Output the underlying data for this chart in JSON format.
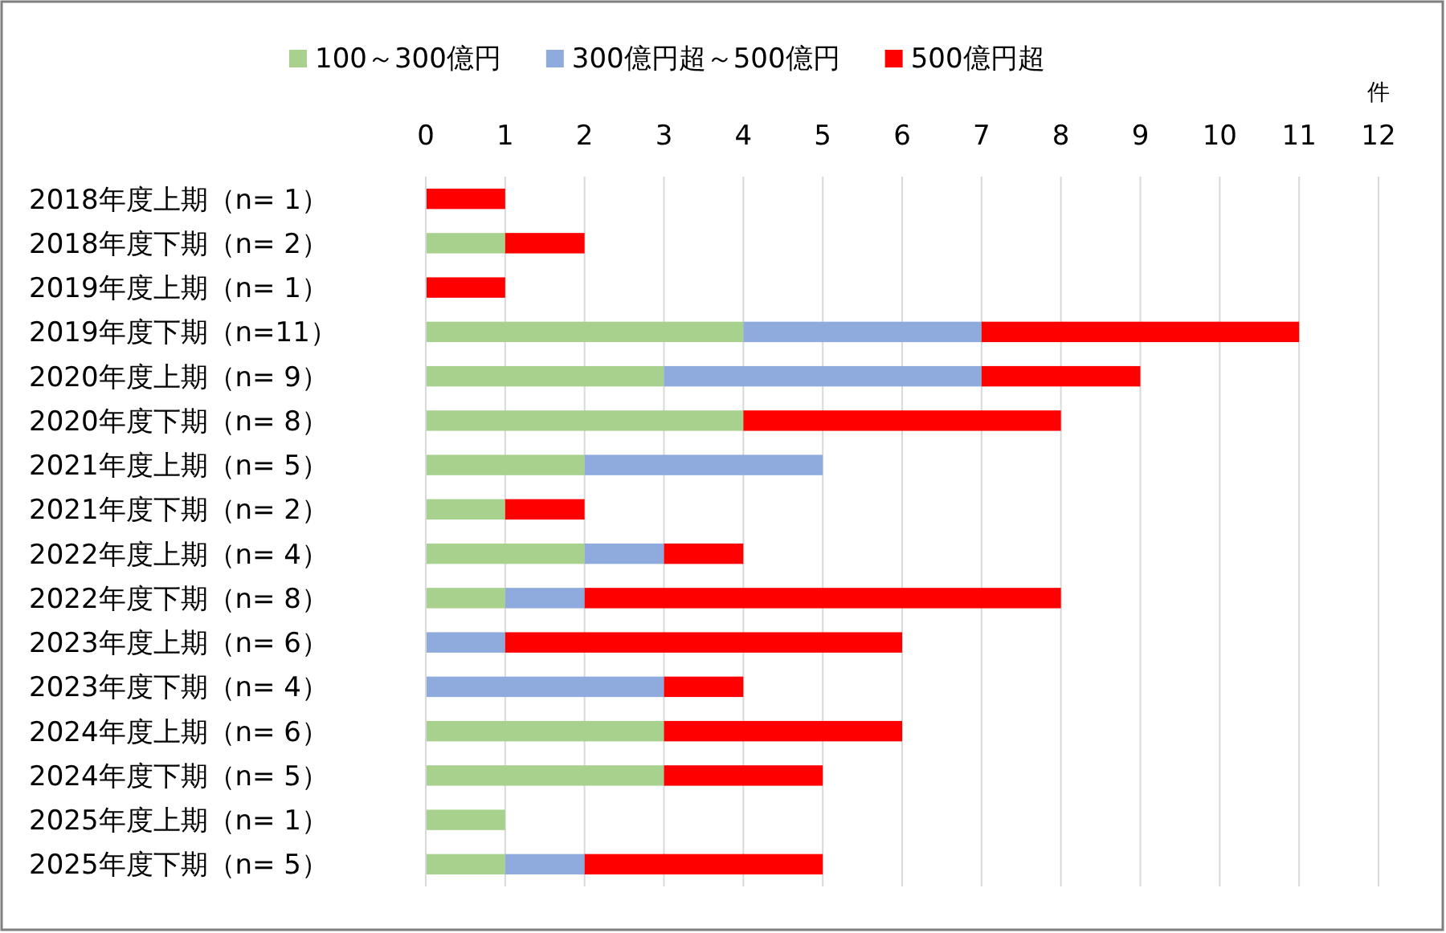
{
  "chart_data": {
    "type": "bar",
    "orientation": "horizontal",
    "stacked": true,
    "xlabel": "件",
    "legend": "top",
    "grid": "x",
    "categories": [
      "2018年度上期（n= 1）",
      "2018年度下期（n= 2）",
      "2019年度上期（n= 1）",
      "2019年度下期（n=11）",
      "2020年度上期（n= 9）",
      "2020年度下期（n= 8）",
      "2021年度上期（n= 5）",
      "2021年度下期（n= 2）",
      "2022年度上期（n= 4）",
      "2022年度下期（n= 8）",
      "2023年度上期（n= 6）",
      "2023年度下期（n= 4）",
      "2024年度上期（n= 6）",
      "2024年度下期（n= 5）",
      "2025年度上期（n= 1）",
      "2025年度下期（n= 5）"
    ],
    "xlim": [
      0,
      12
    ],
    "xticks": [
      0,
      1,
      2,
      3,
      4,
      5,
      6,
      7,
      8,
      9,
      10,
      11,
      12
    ],
    "series": [
      {
        "name": "100～300億円",
        "color": "#a9d18e",
        "values": [
          0,
          1,
          0,
          4,
          3,
          4,
          2,
          1,
          2,
          1,
          0,
          0,
          3,
          3,
          1,
          1
        ]
      },
      {
        "name": "300億円超～500億円",
        "color": "#8faadc",
        "values": [
          0,
          0,
          0,
          3,
          4,
          0,
          3,
          0,
          1,
          1,
          1,
          3,
          0,
          0,
          0,
          1
        ]
      },
      {
        "name": "500億円超",
        "color": "#ff0000",
        "values": [
          1,
          1,
          1,
          4,
          2,
          4,
          0,
          1,
          1,
          6,
          5,
          1,
          3,
          2,
          0,
          3
        ]
      }
    ]
  }
}
